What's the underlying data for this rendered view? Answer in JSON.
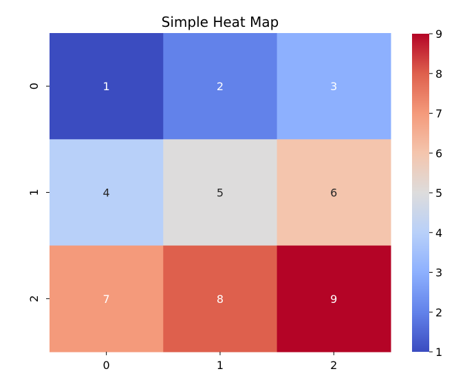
{
  "chart_data": {
    "type": "heatmap",
    "title": "Simple Heat Map",
    "x_categories": [
      "0",
      "1",
      "2"
    ],
    "y_categories": [
      "0",
      "1",
      "2"
    ],
    "values": [
      [
        1,
        2,
        3
      ],
      [
        4,
        5,
        6
      ],
      [
        7,
        8,
        9
      ]
    ],
    "cell_colors": [
      [
        "#3b4cc0",
        "#6282ea",
        "#8db0fe"
      ],
      [
        "#b8d0f9",
        "#dddcdc",
        "#f4c5ad"
      ],
      [
        "#f49a7b",
        "#de604d",
        "#b40426"
      ]
    ],
    "colormap": "coolwarm",
    "colorbar": {
      "range": [
        1,
        9
      ],
      "ticks": [
        "1",
        "2",
        "3",
        "4",
        "5",
        "6",
        "7",
        "8",
        "9"
      ],
      "stops": [
        "#3b4cc0",
        "#6282ea",
        "#8db0fe",
        "#b8d0f9",
        "#dddcdc",
        "#f4c5ad",
        "#f49a7b",
        "#de604d",
        "#b40426"
      ]
    },
    "annotation_colors": {
      "light_cell_text": "#262626",
      "dark_cell_text": "#ffffff"
    }
  }
}
